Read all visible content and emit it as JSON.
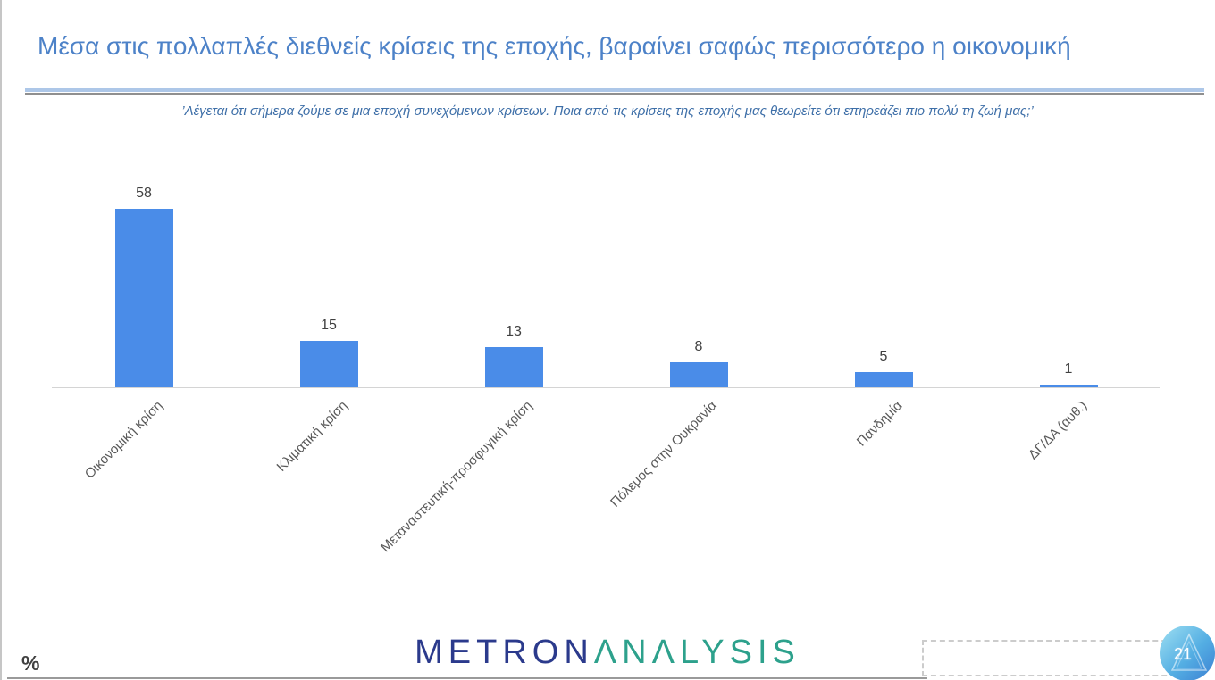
{
  "slide": {
    "title": "Μέσα στις πολλαπλές διεθνείς κρίσεις της εποχής, βαραίνει σαφώς περισσότερο η οικονομική",
    "subtitle": "’Λέγεται ότι σήμερα ζούμε σε μια εποχή συνεχόμενων κρίσεων. Ποια από τις κρίσεις της εποχής μας θεωρείτε ότι επηρεάζει πιο πολύ τη ζωή μας;’",
    "unit_label": "%",
    "page_number": "21",
    "logo": {
      "metron": "METRON",
      "analysis": "ΛNΛLYSIS"
    },
    "colors": {
      "title_blue": "#4d82c8",
      "logo_navy": "#2b3a8c",
      "logo_teal": "#2da18c",
      "badge_blue": "#3b7fd2"
    }
  },
  "chart_data": {
    "type": "bar",
    "title": "",
    "categories": [
      "Οικονομική κρίση",
      "Κλιματική κρίση",
      "Μεταναστευτική-προσφυγική κρίση",
      "Πόλεμος στην Ουκρανία",
      "Πανδημία",
      "ΔΓ/ΔΑ (αυθ.)"
    ],
    "values": [
      58,
      15,
      13,
      8,
      5,
      1
    ],
    "bar_color": "#4a8ce8",
    "value_label_color": "#404040",
    "category_label_color": "#595959",
    "xlabel": "",
    "ylabel": "%",
    "ylim": [
      0,
      63
    ],
    "grid": false,
    "legend": "none",
    "value_labels_shown": true,
    "category_label_rotation_deg": 45
  }
}
